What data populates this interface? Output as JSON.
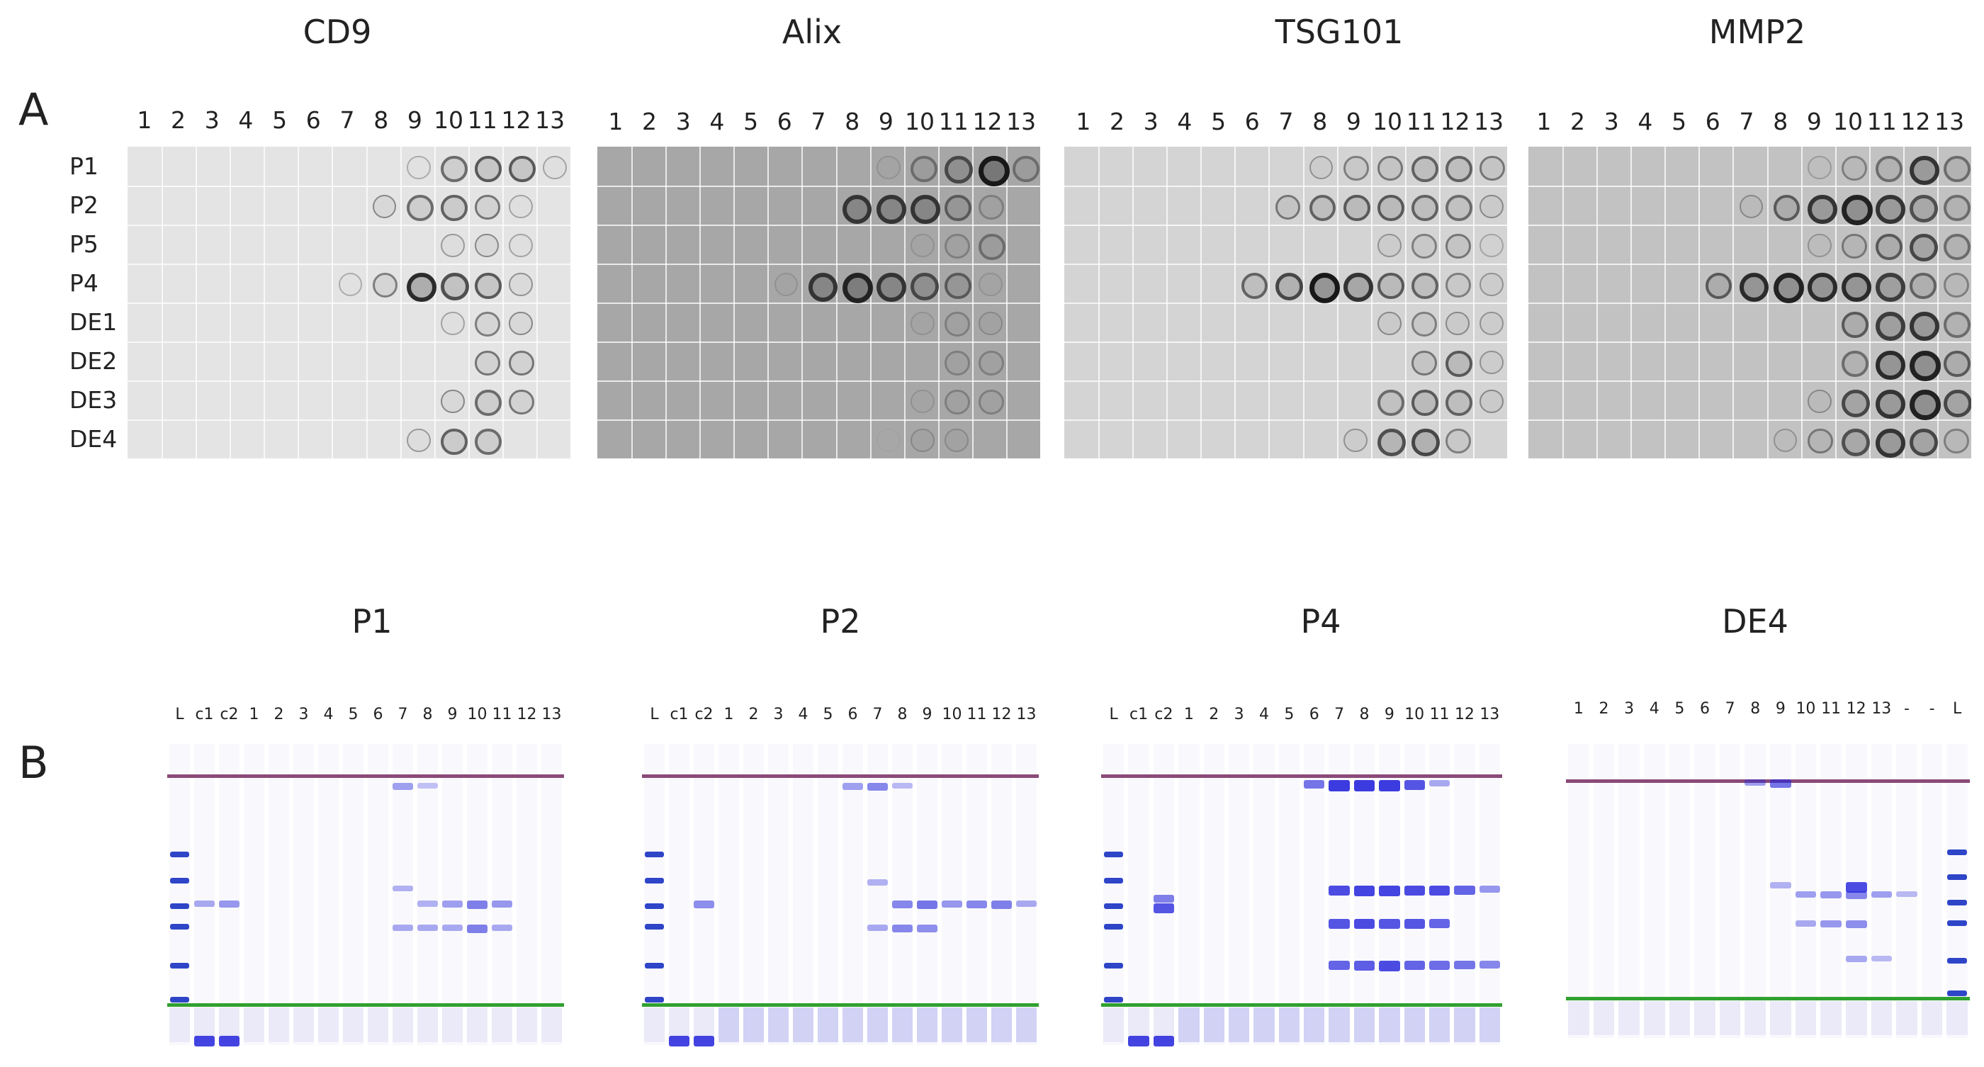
{
  "panels": {
    "a_label": "A",
    "b_label": "B"
  },
  "dot_blots": [
    {
      "title": "CD9",
      "columns": [
        "1",
        "2",
        "3",
        "4",
        "5",
        "6",
        "7",
        "8",
        "9",
        "10",
        "11",
        "12",
        "13"
      ],
      "rows": [
        "P1",
        "P2",
        "P5",
        "P4",
        "DE1",
        "DE2",
        "DE3",
        "DE4"
      ],
      "background": "#e4e4e4"
    },
    {
      "title": "Alix",
      "columns": [
        "1",
        "2",
        "3",
        "4",
        "5",
        "6",
        "7",
        "8",
        "9",
        "10",
        "11",
        "12",
        "13"
      ],
      "background": "#a7a7a7"
    },
    {
      "title": "TSG101",
      "columns": [
        "1",
        "2",
        "3",
        "4",
        "5",
        "6",
        "7",
        "8",
        "9",
        "10",
        "11",
        "12",
        "13"
      ],
      "background": "#d4d4d4"
    },
    {
      "title": "MMP2",
      "columns": [
        "1",
        "2",
        "3",
        "4",
        "5",
        "6",
        "7",
        "8",
        "9",
        "10",
        "11",
        "12",
        "13"
      ],
      "background": "#c2c2c2"
    }
  ],
  "gels": [
    {
      "title": "P1",
      "lanes": [
        "L",
        "c1",
        "c2",
        "1",
        "2",
        "3",
        "4",
        "5",
        "6",
        "7",
        "8",
        "9",
        "10",
        "11",
        "12",
        "13"
      ]
    },
    {
      "title": "P2",
      "lanes": [
        "L",
        "c1",
        "c2",
        "1",
        "2",
        "3",
        "4",
        "5",
        "6",
        "7",
        "8",
        "9",
        "10",
        "11",
        "12",
        "13"
      ]
    },
    {
      "title": "P4",
      "lanes": [
        "L",
        "c1",
        "c2",
        "1",
        "2",
        "3",
        "4",
        "5",
        "6",
        "7",
        "8",
        "9",
        "10",
        "11",
        "12",
        "13"
      ]
    },
    {
      "title": "DE4",
      "lanes": [
        "1",
        "2",
        "3",
        "4",
        "5",
        "6",
        "7",
        "8",
        "9",
        "10",
        "11",
        "12",
        "13",
        "-",
        "-",
        "L"
      ]
    }
  ],
  "colors": {
    "upper_marker": "#8a4a78",
    "lower_marker": "#2fa12f",
    "band": "#3a3ae0",
    "ladder": "#2f45c8"
  }
}
